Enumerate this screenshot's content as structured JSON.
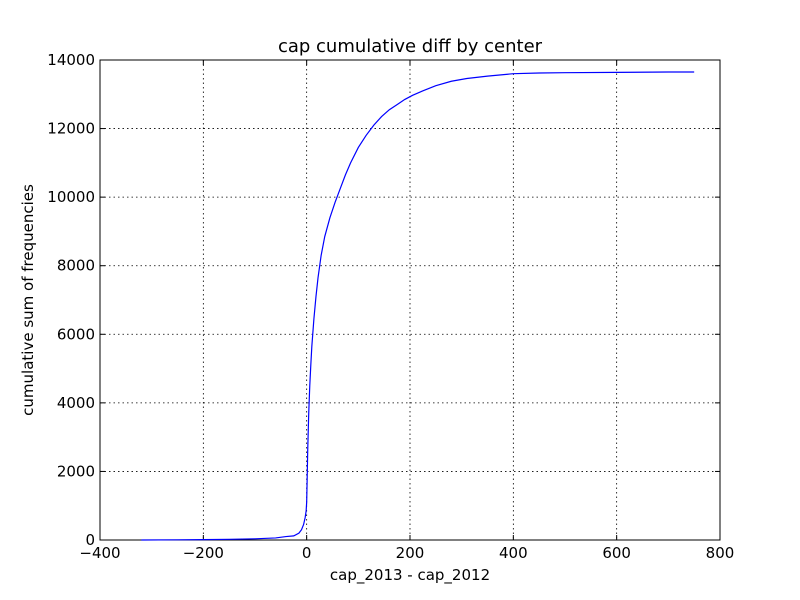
{
  "chart_data": {
    "type": "line",
    "title": "cap cumulative diff by center",
    "xlabel": "cap_2013 - cap_2012",
    "ylabel": "cumulative sum of frequencies",
    "xlim": [
      -400,
      800
    ],
    "ylim": [
      0,
      14000
    ],
    "x_ticks": [
      -400,
      -200,
      0,
      200,
      400,
      600,
      800
    ],
    "x_tick_labels": [
      "−400",
      "−200",
      "0",
      "200",
      "400",
      "600",
      "800"
    ],
    "y_ticks": [
      0,
      2000,
      4000,
      6000,
      8000,
      10000,
      12000,
      14000
    ],
    "y_tick_labels": [
      "0",
      "2000",
      "4000",
      "6000",
      "8000",
      "10000",
      "12000",
      "14000"
    ],
    "grid": true,
    "series": [
      {
        "color": "#0000ff",
        "x": [
          -320,
          -250,
          -200,
          -150,
          -100,
          -60,
          -40,
          -25,
          -15,
          -10,
          -6,
          -3,
          -1,
          0,
          1,
          2,
          4,
          6,
          8,
          10,
          14,
          18,
          22,
          28,
          35,
          45,
          55,
          65,
          75,
          85,
          100,
          115,
          130,
          145,
          160,
          175,
          190,
          205,
          225,
          250,
          280,
          310,
          350,
          400,
          450,
          500,
          600,
          700,
          750
        ],
        "y": [
          0,
          5,
          10,
          20,
          35,
          60,
          100,
          120,
          200,
          300,
          450,
          650,
          850,
          1100,
          1800,
          2600,
          3700,
          4500,
          5100,
          5650,
          6450,
          7100,
          7650,
          8300,
          8850,
          9400,
          9850,
          10250,
          10650,
          11000,
          11450,
          11800,
          12100,
          12350,
          12550,
          12700,
          12850,
          12970,
          13100,
          13250,
          13380,
          13460,
          13530,
          13600,
          13620,
          13630,
          13640,
          13650,
          13650
        ]
      }
    ]
  }
}
